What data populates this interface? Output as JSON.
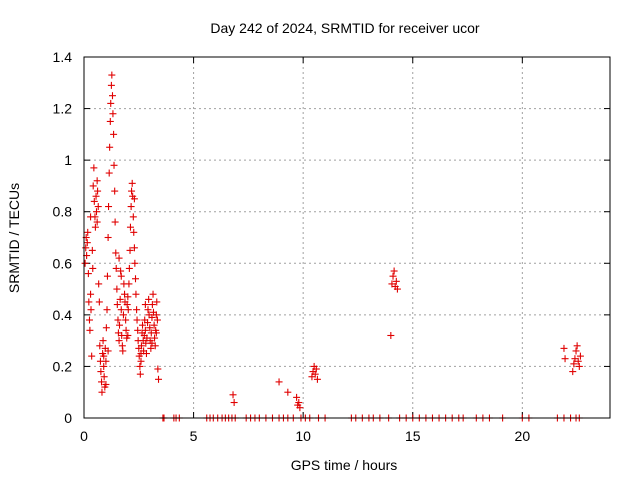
{
  "chart_data": {
    "type": "scatter",
    "title": "Day 242 of 2024, SRMTID for receiver ucor",
    "xlabel": "GPS time / hours",
    "ylabel": "SRMTID / TECUs",
    "xlim": [
      0,
      24
    ],
    "ylim": [
      0,
      1.4
    ],
    "x_ticks": [
      0,
      5,
      10,
      15,
      20
    ],
    "x_tick_labels": [
      "0",
      "5",
      "10",
      "15",
      "20"
    ],
    "y_ticks": [
      0,
      0.2,
      0.4,
      0.6,
      0.8,
      1.0,
      1.2,
      1.4
    ],
    "y_tick_labels": [
      "0",
      "0.2",
      "0.4",
      "0.6",
      "0.8",
      "1",
      "1.2",
      "1.4"
    ],
    "grid": true,
    "marker": "+",
    "marker_color": "#e00000",
    "series": [
      {
        "name": "SRMTID",
        "points": [
          [
            0.05,
            0.6
          ],
          [
            0.08,
            0.66
          ],
          [
            0.1,
            0.7
          ],
          [
            0.12,
            0.63
          ],
          [
            0.15,
            0.68
          ],
          [
            0.17,
            0.72
          ],
          [
            0.2,
            0.56
          ],
          [
            0.22,
            0.45
          ],
          [
            0.25,
            0.38
          ],
          [
            0.27,
            0.34
          ],
          [
            0.3,
            0.48
          ],
          [
            0.32,
            0.42
          ],
          [
            0.35,
            0.24
          ],
          [
            0.38,
            0.65
          ],
          [
            0.4,
            0.58
          ],
          [
            0.42,
            0.9
          ],
          [
            0.45,
            0.97
          ],
          [
            0.47,
            0.84
          ],
          [
            0.5,
            0.78
          ],
          [
            0.52,
            0.74
          ],
          [
            0.55,
            0.86
          ],
          [
            0.57,
            0.8
          ],
          [
            0.6,
            0.76
          ],
          [
            0.62,
            0.88
          ],
          [
            0.65,
            0.82
          ],
          [
            0.67,
            0.52
          ],
          [
            0.7,
            0.45
          ],
          [
            0.72,
            0.28
          ],
          [
            0.75,
            0.22
          ],
          [
            0.77,
            0.18
          ],
          [
            0.8,
            0.14
          ],
          [
            0.82,
            0.1
          ],
          [
            0.85,
            0.25
          ],
          [
            0.87,
            0.3
          ],
          [
            0.9,
            0.2
          ],
          [
            0.92,
            0.16
          ],
          [
            0.95,
            0.12
          ],
          [
            0.97,
            0.27
          ],
          [
            1.0,
            0.22
          ],
          [
            1.02,
            0.35
          ],
          [
            1.05,
            0.42
          ],
          [
            1.07,
            0.55
          ],
          [
            1.1,
            0.7
          ],
          [
            1.12,
            0.82
          ],
          [
            1.15,
            0.95
          ],
          [
            1.17,
            1.05
          ],
          [
            1.2,
            1.15
          ],
          [
            1.22,
            1.22
          ],
          [
            1.25,
            1.29
          ],
          [
            1.27,
            1.33
          ],
          [
            1.3,
            1.25
          ],
          [
            1.32,
            1.18
          ],
          [
            1.35,
            1.1
          ],
          [
            1.37,
            0.98
          ],
          [
            1.4,
            0.88
          ],
          [
            1.42,
            0.76
          ],
          [
            1.45,
            0.64
          ],
          [
            1.47,
            0.58
          ],
          [
            1.5,
            0.5
          ],
          [
            1.52,
            0.44
          ],
          [
            1.55,
            0.38
          ],
          [
            1.57,
            0.33
          ],
          [
            1.6,
            0.3
          ],
          [
            1.62,
            0.36
          ],
          [
            1.65,
            0.46
          ],
          [
            1.67,
            0.57
          ],
          [
            1.7,
            0.42
          ],
          [
            1.72,
            0.32
          ],
          [
            1.75,
            0.28
          ],
          [
            1.77,
            0.26
          ],
          [
            1.8,
            0.4
          ],
          [
            1.82,
            0.52
          ],
          [
            1.85,
            0.48
          ],
          [
            1.87,
            0.45
          ],
          [
            1.9,
            0.38
          ],
          [
            1.92,
            0.34
          ],
          [
            1.95,
            0.31
          ],
          [
            1.97,
            0.44
          ],
          [
            2.0,
            0.47
          ],
          [
            2.02,
            0.42
          ],
          [
            2.05,
            0.52
          ],
          [
            2.07,
            0.58
          ],
          [
            2.1,
            0.65
          ],
          [
            2.12,
            0.74
          ],
          [
            2.15,
            0.82
          ],
          [
            2.17,
            0.88
          ],
          [
            2.2,
            0.91
          ],
          [
            2.22,
            0.86
          ],
          [
            2.25,
            0.78
          ],
          [
            2.27,
            0.72
          ],
          [
            2.3,
            0.66
          ],
          [
            2.32,
            0.6
          ],
          [
            2.35,
            0.54
          ],
          [
            2.37,
            0.48
          ],
          [
            2.4,
            0.42
          ],
          [
            2.42,
            0.38
          ],
          [
            2.45,
            0.34
          ],
          [
            2.47,
            0.3
          ],
          [
            2.5,
            0.27
          ],
          [
            2.52,
            0.24
          ],
          [
            2.55,
            0.2
          ],
          [
            2.57,
            0.17
          ],
          [
            2.6,
            0.22
          ],
          [
            2.62,
            0.28
          ],
          [
            2.65,
            0.33
          ],
          [
            2.67,
            0.36
          ],
          [
            2.7,
            0.3
          ],
          [
            2.72,
            0.26
          ],
          [
            2.75,
            0.32
          ],
          [
            2.77,
            0.38
          ],
          [
            2.8,
            0.34
          ],
          [
            2.82,
            0.29
          ],
          [
            2.85,
            0.25
          ],
          [
            2.87,
            0.31
          ],
          [
            2.9,
            0.37
          ],
          [
            2.92,
            0.42
          ],
          [
            2.95,
            0.46
          ],
          [
            2.97,
            0.4
          ],
          [
            3.0,
            0.35
          ],
          [
            3.02,
            0.3
          ],
          [
            3.05,
            0.27
          ],
          [
            3.07,
            0.33
          ],
          [
            3.1,
            0.39
          ],
          [
            3.12,
            0.44
          ],
          [
            3.15,
            0.48
          ],
          [
            3.17,
            0.41
          ],
          [
            3.2,
            0.36
          ],
          [
            3.22,
            0.31
          ],
          [
            3.25,
            0.28
          ],
          [
            3.27,
            0.34
          ],
          [
            3.3,
            0.4
          ],
          [
            3.32,
            0.45
          ],
          [
            3.35,
            0.38
          ],
          [
            3.37,
            0.19
          ],
          [
            3.4,
            0.15
          ],
          [
            0.3,
            0.78
          ],
          [
            0.6,
            0.92
          ],
          [
            0.9,
            0.24
          ],
          [
            1.0,
            0.13
          ],
          [
            1.1,
            0.26
          ],
          [
            1.6,
            0.62
          ],
          [
            1.7,
            0.55
          ],
          [
            2.0,
            0.32
          ],
          [
            2.3,
            0.85
          ],
          [
            2.6,
            0.25
          ],
          [
            2.8,
            0.44
          ],
          [
            3.1,
            0.29
          ],
          [
            3.3,
            0.33
          ],
          [
            6.8,
            0.09
          ],
          [
            6.85,
            0.06
          ],
          [
            8.9,
            0.14
          ],
          [
            9.3,
            0.1
          ],
          [
            9.7,
            0.08
          ],
          [
            9.75,
            0.05
          ],
          [
            9.8,
            0.06
          ],
          [
            9.85,
            0.04
          ],
          [
            10.4,
            0.16
          ],
          [
            10.45,
            0.18
          ],
          [
            10.5,
            0.2
          ],
          [
            10.55,
            0.17
          ],
          [
            10.6,
            0.19
          ],
          [
            10.65,
            0.15
          ],
          [
            14.0,
            0.32
          ],
          [
            14.05,
            0.52
          ],
          [
            14.1,
            0.55
          ],
          [
            14.15,
            0.57
          ],
          [
            14.2,
            0.51
          ],
          [
            14.25,
            0.53
          ],
          [
            14.3,
            0.5
          ],
          [
            21.9,
            0.27
          ],
          [
            21.95,
            0.23
          ],
          [
            22.3,
            0.18
          ],
          [
            22.35,
            0.21
          ],
          [
            22.4,
            0.23
          ],
          [
            22.45,
            0.26
          ],
          [
            22.5,
            0.28
          ],
          [
            22.55,
            0.22
          ],
          [
            22.6,
            0.2
          ],
          [
            22.65,
            0.24
          ],
          [
            3.6,
            0
          ],
          [
            3.65,
            0
          ],
          [
            4.1,
            0
          ],
          [
            4.2,
            0
          ],
          [
            4.35,
            0
          ],
          [
            5.6,
            0
          ],
          [
            5.75,
            0
          ],
          [
            5.9,
            0
          ],
          [
            6.1,
            0
          ],
          [
            6.3,
            0
          ],
          [
            6.45,
            0
          ],
          [
            6.6,
            0
          ],
          [
            6.75,
            0
          ],
          [
            6.9,
            0
          ],
          [
            7.4,
            0
          ],
          [
            7.6,
            0
          ],
          [
            7.8,
            0
          ],
          [
            8.0,
            0
          ],
          [
            8.3,
            0
          ],
          [
            8.6,
            0
          ],
          [
            8.9,
            0
          ],
          [
            9.1,
            0
          ],
          [
            9.3,
            0
          ],
          [
            9.55,
            0
          ],
          [
            9.9,
            0
          ],
          [
            10.1,
            0
          ],
          [
            10.3,
            0
          ],
          [
            10.7,
            0
          ],
          [
            11.0,
            0
          ],
          [
            12.2,
            0
          ],
          [
            12.4,
            0
          ],
          [
            12.7,
            0
          ],
          [
            13.0,
            0
          ],
          [
            13.2,
            0
          ],
          [
            13.5,
            0
          ],
          [
            13.9,
            0
          ],
          [
            14.4,
            0
          ],
          [
            14.7,
            0
          ],
          [
            15.0,
            0
          ],
          [
            15.3,
            0
          ],
          [
            15.6,
            0
          ],
          [
            15.9,
            0
          ],
          [
            16.2,
            0
          ],
          [
            16.5,
            0
          ],
          [
            16.8,
            0
          ],
          [
            17.1,
            0
          ],
          [
            17.3,
            0
          ],
          [
            17.9,
            0
          ],
          [
            18.2,
            0
          ],
          [
            18.5,
            0
          ],
          [
            19.1,
            0
          ],
          [
            20.0,
            0
          ],
          [
            20.3,
            0
          ],
          [
            21.6,
            0
          ],
          [
            21.9,
            0
          ],
          [
            22.2,
            0
          ],
          [
            22.45,
            0
          ],
          [
            22.6,
            0
          ]
        ]
      }
    ]
  }
}
